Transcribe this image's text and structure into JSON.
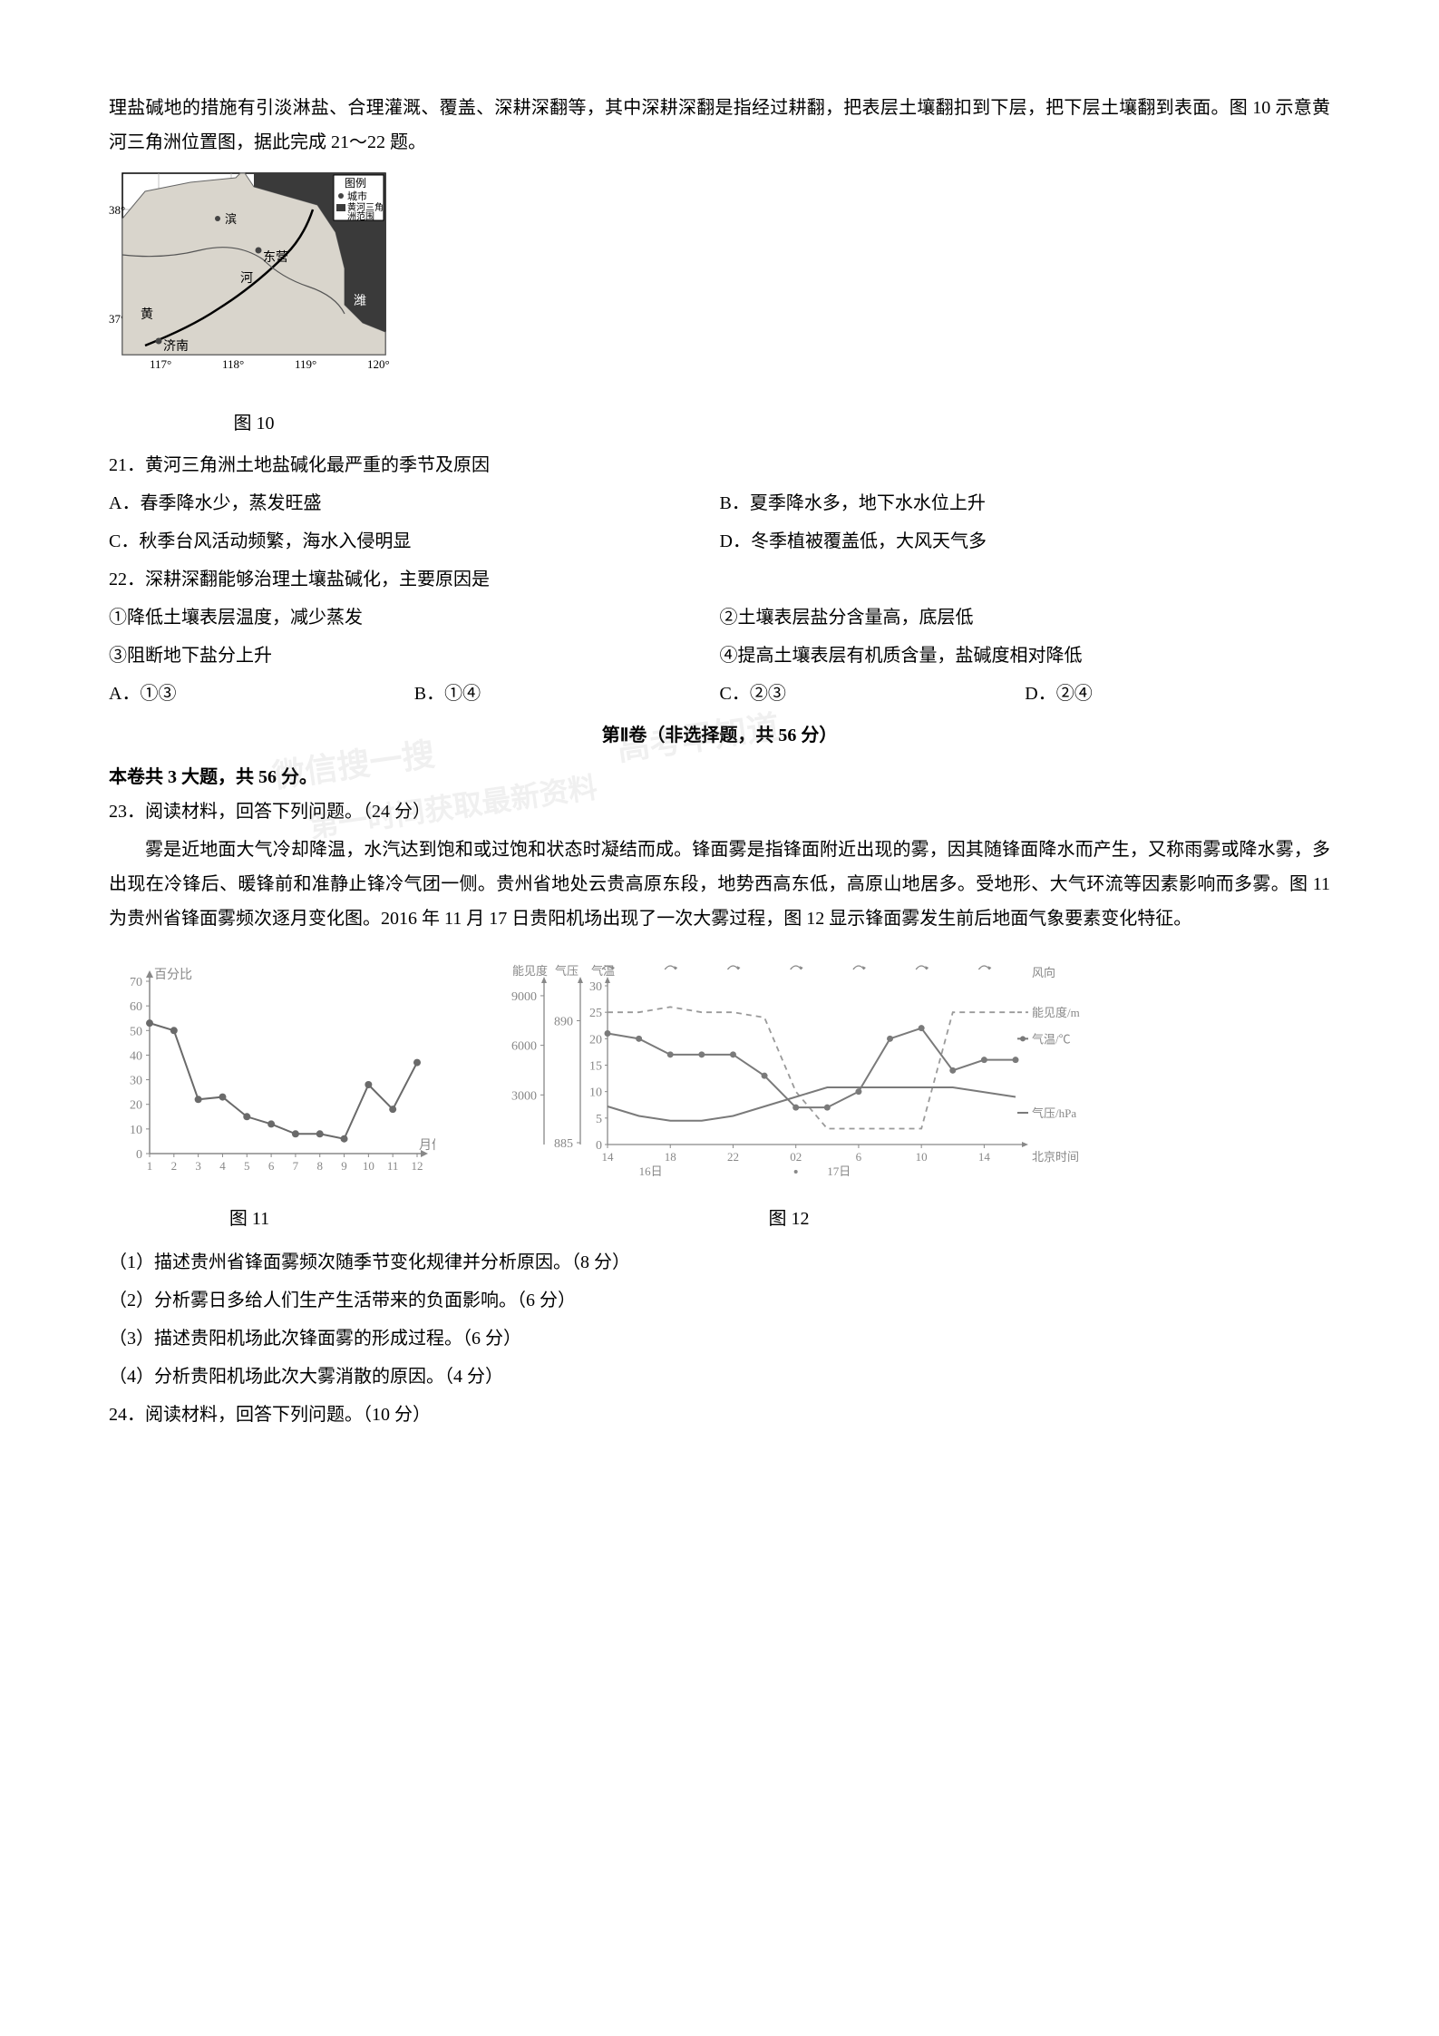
{
  "intro": {
    "p1": "理盐碱地的措施有引淡淋盐、合理灌溉、覆盖、深耕深翻等，其中深耕深翻是指经过耕翻，把表层土壤翻扣到下层，把下层土壤翻到表面。图 10 示意黄河三角洲位置图，据此完成 21～22 题。"
  },
  "fig10": {
    "caption": "图 10",
    "legend_title": "图例",
    "legend_city": "城市",
    "legend_delta": "黄河三角洲范围",
    "labels": {
      "lat38": "38°",
      "lat37": "37°",
      "lon117": "117°",
      "lon118": "118°",
      "lon119": "119°",
      "lon120": "120°",
      "jinan": "济南",
      "dongying": "东营",
      "huang": "黄",
      "he": "河",
      "bin": "滨",
      "wei": "潍"
    },
    "colors": {
      "land": "#d9d5cc",
      "sea": "#3a3a3a",
      "line": "#000",
      "city": "#444"
    }
  },
  "q21": {
    "stem": "21．黄河三角洲土地盐碱化最严重的季节及原因",
    "optA": "A．春季降水少，蒸发旺盛",
    "optB": "B．夏季降水多，地下水水位上升",
    "optC": "C．秋季台风活动频繁，海水入侵明显",
    "optD": "D．冬季植被覆盖低，大风天气多"
  },
  "q22": {
    "stem": "22．深耕深翻能够治理土壤盐碱化，主要原因是",
    "r1": "①降低土壤表层温度，减少蒸发",
    "r2": "②土壤表层盐分含量高，底层低",
    "r3": "③阻断地下盐分上升",
    "r4": "④提高土壤表层有机质含量，盐碱度相对降低",
    "optA": "A．①③",
    "optB": "B．①④",
    "optC": "C．②③",
    "optD": "D．②④"
  },
  "section2": {
    "title": "第Ⅱ卷（非选择题，共 56 分）",
    "sub": "本卷共 3 大题，共 56 分。"
  },
  "q23": {
    "stem": "23．阅读材料，回答下列问题。（24 分）",
    "p1": "雾是近地面大气冷却降温，水汽达到饱和或过饱和状态时凝结而成。锋面雾是指锋面附近出现的雾，因其随锋面降水而产生，又称雨雾或降水雾，多出现在冷锋后、暖锋前和准静止锋冷气团一侧。贵州省地处云贵高原东段，地势西高东低，高原山地居多。受地形、大气环流等因素影响而多雾。图 11 为贵州省锋面雾频次逐月变化图。2016 年 11 月 17 日贵阳机场出现了一次大雾过程，图 12 显示锋面雾发生前后地面气象要素变化特征。",
    "sq1": "（1）描述贵州省锋面雾频次随季节变化规律并分析原因。（8 分）",
    "sq2": "（2）分析雾日多给人们生产生活带来的负面影响。（6 分）",
    "sq3": "（3）描述贵阳机场此次锋面雾的形成过程。（6 分）",
    "sq4": "（4）分析贵阳机场此次大雾消散的原因。（4 分）"
  },
  "q24": {
    "stem": "24．阅读材料，回答下列问题。（10 分）"
  },
  "fig11": {
    "caption": "图 11",
    "ylabel": "百分比",
    "xlabel": "月份",
    "x": [
      1,
      2,
      3,
      4,
      5,
      6,
      7,
      8,
      9,
      10,
      11,
      12
    ],
    "y": [
      53,
      50,
      22,
      23,
      15,
      12,
      8,
      8,
      6,
      28,
      18,
      37
    ],
    "ylim": [
      0,
      70
    ],
    "ytick_step": 10,
    "colors": {
      "line": "#6a6a6a",
      "marker": "#6a6a6a",
      "axis": "#888",
      "text": "#888"
    },
    "marker_size": 4,
    "line_width": 2
  },
  "fig12": {
    "caption": "图 12",
    "left_labels": {
      "vis": "能见度",
      "press": "气压",
      "temp": "气温"
    },
    "right_labels": {
      "wind": "风向",
      "vis_unit": "能见度/m",
      "temp_unit": "气温/℃",
      "press_unit": "气压/hPa",
      "time": "北京时间"
    },
    "vis_axis": {
      "ticks": [
        3000,
        6000,
        9000
      ],
      "color": "#888"
    },
    "press_axis": {
      "ticks": [
        885,
        890
      ],
      "color": "#888"
    },
    "temp_axis": {
      "ticks": [
        0,
        5,
        10,
        15,
        20,
        25,
        30
      ],
      "color": "#888"
    },
    "x_ticks": [
      "14",
      "18",
      "22",
      "02",
      "6",
      "10",
      "14"
    ],
    "x_days": {
      "d16": "16日",
      "d17": "17日"
    },
    "series": {
      "temp": {
        "type": "line_markers",
        "color": "#7a7a7a",
        "y": [
          21,
          20,
          17,
          17,
          17,
          13,
          7,
          7,
          10,
          20,
          22,
          14,
          16,
          16
        ]
      },
      "vis": {
        "type": "dashed",
        "color": "#9a9a9a",
        "y": [
          25,
          25,
          26,
          25,
          25,
          24,
          10,
          3,
          3,
          3,
          3,
          25,
          25,
          25
        ]
      },
      "press": {
        "type": "line",
        "color": "#7a7a7a",
        "y": [
          8,
          6,
          5,
          5,
          6,
          8,
          10,
          12,
          12,
          12,
          12,
          12,
          11,
          10
        ]
      }
    },
    "wind_arrows": {
      "color": "#888"
    }
  },
  "watermarks": {
    "w1": "微信搜一搜",
    "w2": "高考早知道",
    "w3": "第一时间获取最新资料"
  }
}
